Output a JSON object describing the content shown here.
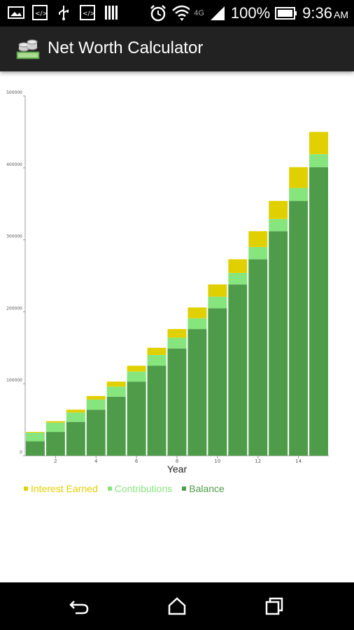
{
  "status_bar": {
    "battery_percent": "100%",
    "network_label": "4G",
    "time": "9:36",
    "ampm": "AM"
  },
  "app_bar": {
    "title": "Net Worth Calculator",
    "icon": "money-stack-icon"
  },
  "chart_data": {
    "type": "bar",
    "stacked": true,
    "xlabel": "Year",
    "ylabel": "",
    "x": [
      1,
      2,
      3,
      4,
      5,
      6,
      7,
      8,
      9,
      10,
      11,
      12,
      13,
      14,
      15
    ],
    "xticks": [
      2,
      4,
      6,
      8,
      10,
      12,
      14
    ],
    "yticks": [
      0,
      100000,
      200000,
      300000,
      400000,
      500000
    ],
    "ylim": [
      0,
      500000
    ],
    "grid": false,
    "legend_position": "bottom-left",
    "series": [
      {
        "name": "Balance",
        "color": "#4e9c4a",
        "values": [
          20000,
          33000,
          47000,
          64000,
          82000,
          103000,
          125000,
          149000,
          176000,
          205000,
          238000,
          273000,
          312000,
          354000,
          401000
        ]
      },
      {
        "name": "Contributions",
        "color": "#86e57c",
        "values": [
          12000,
          13000,
          13000,
          14000,
          14000,
          14000,
          15000,
          15000,
          15000,
          16000,
          16000,
          17000,
          17000,
          18000,
          18000
        ]
      },
      {
        "name": "Interest Earned",
        "color": "#e1d000",
        "values": [
          1000,
          2000,
          4000,
          5000,
          7000,
          8000,
          10000,
          12000,
          15000,
          17000,
          19000,
          22000,
          25000,
          29000,
          31000
        ]
      }
    ],
    "legend_order": [
      "Interest Earned",
      "Contributions",
      "Balance"
    ]
  },
  "nav_bar": {
    "back": "back-icon",
    "home": "home-icon",
    "recents": "recent-apps-icon"
  }
}
